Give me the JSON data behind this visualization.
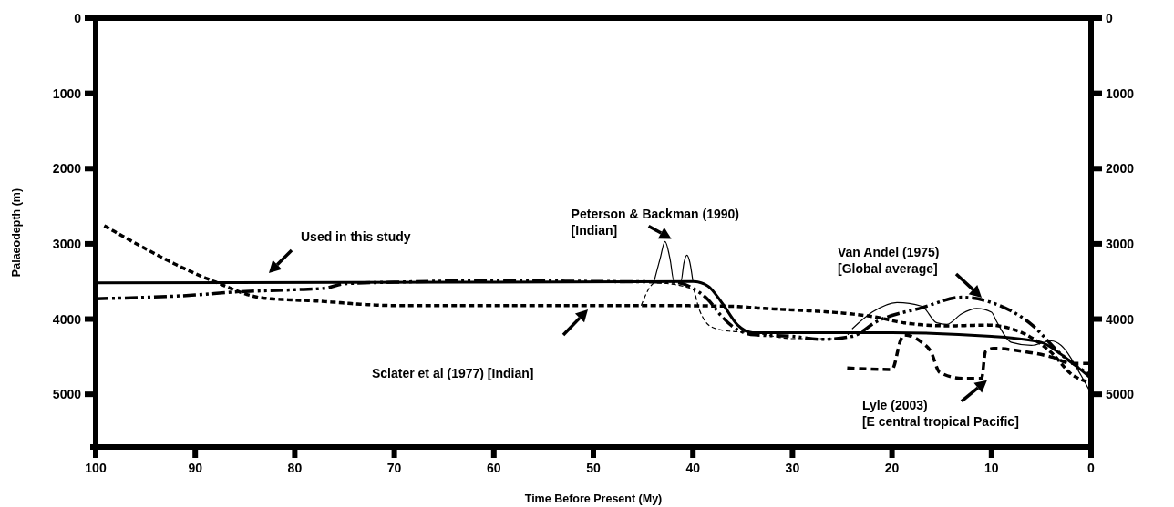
{
  "chart_data": {
    "type": "line",
    "xlabel": "Time Before Present (My)",
    "ylabel": "Palaeodepth (m)",
    "xlim": [
      100,
      0
    ],
    "xticks": [
      100,
      90,
      80,
      70,
      60,
      50,
      40,
      30,
      20,
      10,
      0
    ],
    "ylim": [
      5700,
      0
    ],
    "yticks": [
      0,
      1000,
      2000,
      3000,
      4000,
      5000
    ],
    "y2lim": [
      5700,
      0
    ],
    "y2ticks": [
      0,
      1000,
      2000,
      3000,
      4000,
      5000
    ],
    "series": [
      {
        "color": "#000000",
        "line_style": "solid",
        "x": [
          100,
          60,
          40,
          38.5,
          37,
          35.5,
          34,
          20,
          10,
          5,
          3,
          0
        ],
        "values": [
          3520,
          3510,
          3500,
          3560,
          3800,
          4080,
          4180,
          4180,
          4230,
          4310,
          4470,
          4790
        ]
      },
      {
        "color": "#000000",
        "line_style": "dotted",
        "x": [
          99,
          88.3,
          83.2,
          77.9,
          70,
          55,
          45,
          36,
          33.8,
          21.8,
          18.8,
          14.3,
          10.4,
          6.8,
          3.8,
          2,
          0.5
        ],
        "values": [
          2770,
          3490,
          3720,
          3760,
          3820,
          3820,
          3820,
          3830,
          3850,
          3970,
          4050,
          4090,
          4080,
          4190,
          4470,
          4730,
          4830
        ]
      },
      {
        "color": "#000000",
        "line_style": "dashed",
        "x": [
          100,
          90,
          86,
          80,
          77,
          75,
          70,
          60,
          50,
          42,
          40,
          38.5,
          37,
          36,
          33.8,
          30,
          27,
          24,
          21.5,
          17,
          13,
          10,
          6,
          3,
          0
        ],
        "values": [
          3730,
          3680,
          3640,
          3610,
          3590,
          3530,
          3510,
          3490,
          3500,
          3510,
          3590,
          3740,
          3980,
          4100,
          4210,
          4230,
          4270,
          4230,
          4030,
          3850,
          3710,
          3780,
          4070,
          4470,
          4750
        ]
      },
      {
        "color": "#000000",
        "line_style": "solid",
        "x": [
          43.9,
          43.3,
          42.8,
          42.3,
          41.9,
          41.2,
          40.9,
          40.6,
          40.3,
          40,
          null,
          24,
          22,
          19.5,
          17,
          15.5,
          14.5,
          13,
          11.5,
          10,
          9.5,
          8,
          6,
          4,
          3,
          1,
          0
        ],
        "values": [
          3500,
          3200,
          2970,
          3200,
          3500,
          3500,
          3250,
          3150,
          3250,
          3500,
          null,
          4130,
          3910,
          3780,
          3830,
          4050,
          4070,
          3930,
          3860,
          3910,
          4030,
          4310,
          4350,
          4290,
          4350,
          4750,
          4990
        ]
      },
      {
        "color": "#000000",
        "line_style": "dashed",
        "x": [
          45.2,
          43.8,
          40,
          39.4,
          38.2,
          36.4,
          34,
          30,
          25,
          24
        ],
        "values": [
          3820,
          3520,
          3600,
          3860,
          4100,
          4160,
          4180,
          4260,
          4260,
          4130
        ]
      },
      {
        "color": "#000000",
        "line_style": "dashed",
        "x": [
          24.5,
          20,
          19.1,
          18.8,
          17,
          16.1,
          15.2,
          12.8,
          11,
          10.6,
          9.8,
          6.8,
          3.8,
          2,
          0.2
        ],
        "values": [
          4650,
          4670,
          4270,
          4210,
          4310,
          4430,
          4710,
          4790,
          4790,
          4430,
          4390,
          4430,
          4510,
          4590,
          4590
        ]
      }
    ],
    "annotations": [
      "Used in this study",
      "Sclater et al (1977) [Indian]",
      {
        "text": "Peterson & Backman (1990)\n[Indian]",
        "x": 42.8,
        "y": 2970
      },
      "Van Andel (1975)\n[Global average]",
      {
        "text": "Lyle (2003)\n[E central tropical Pacific]",
        "x": 11,
        "y": 4790
      }
    ]
  }
}
